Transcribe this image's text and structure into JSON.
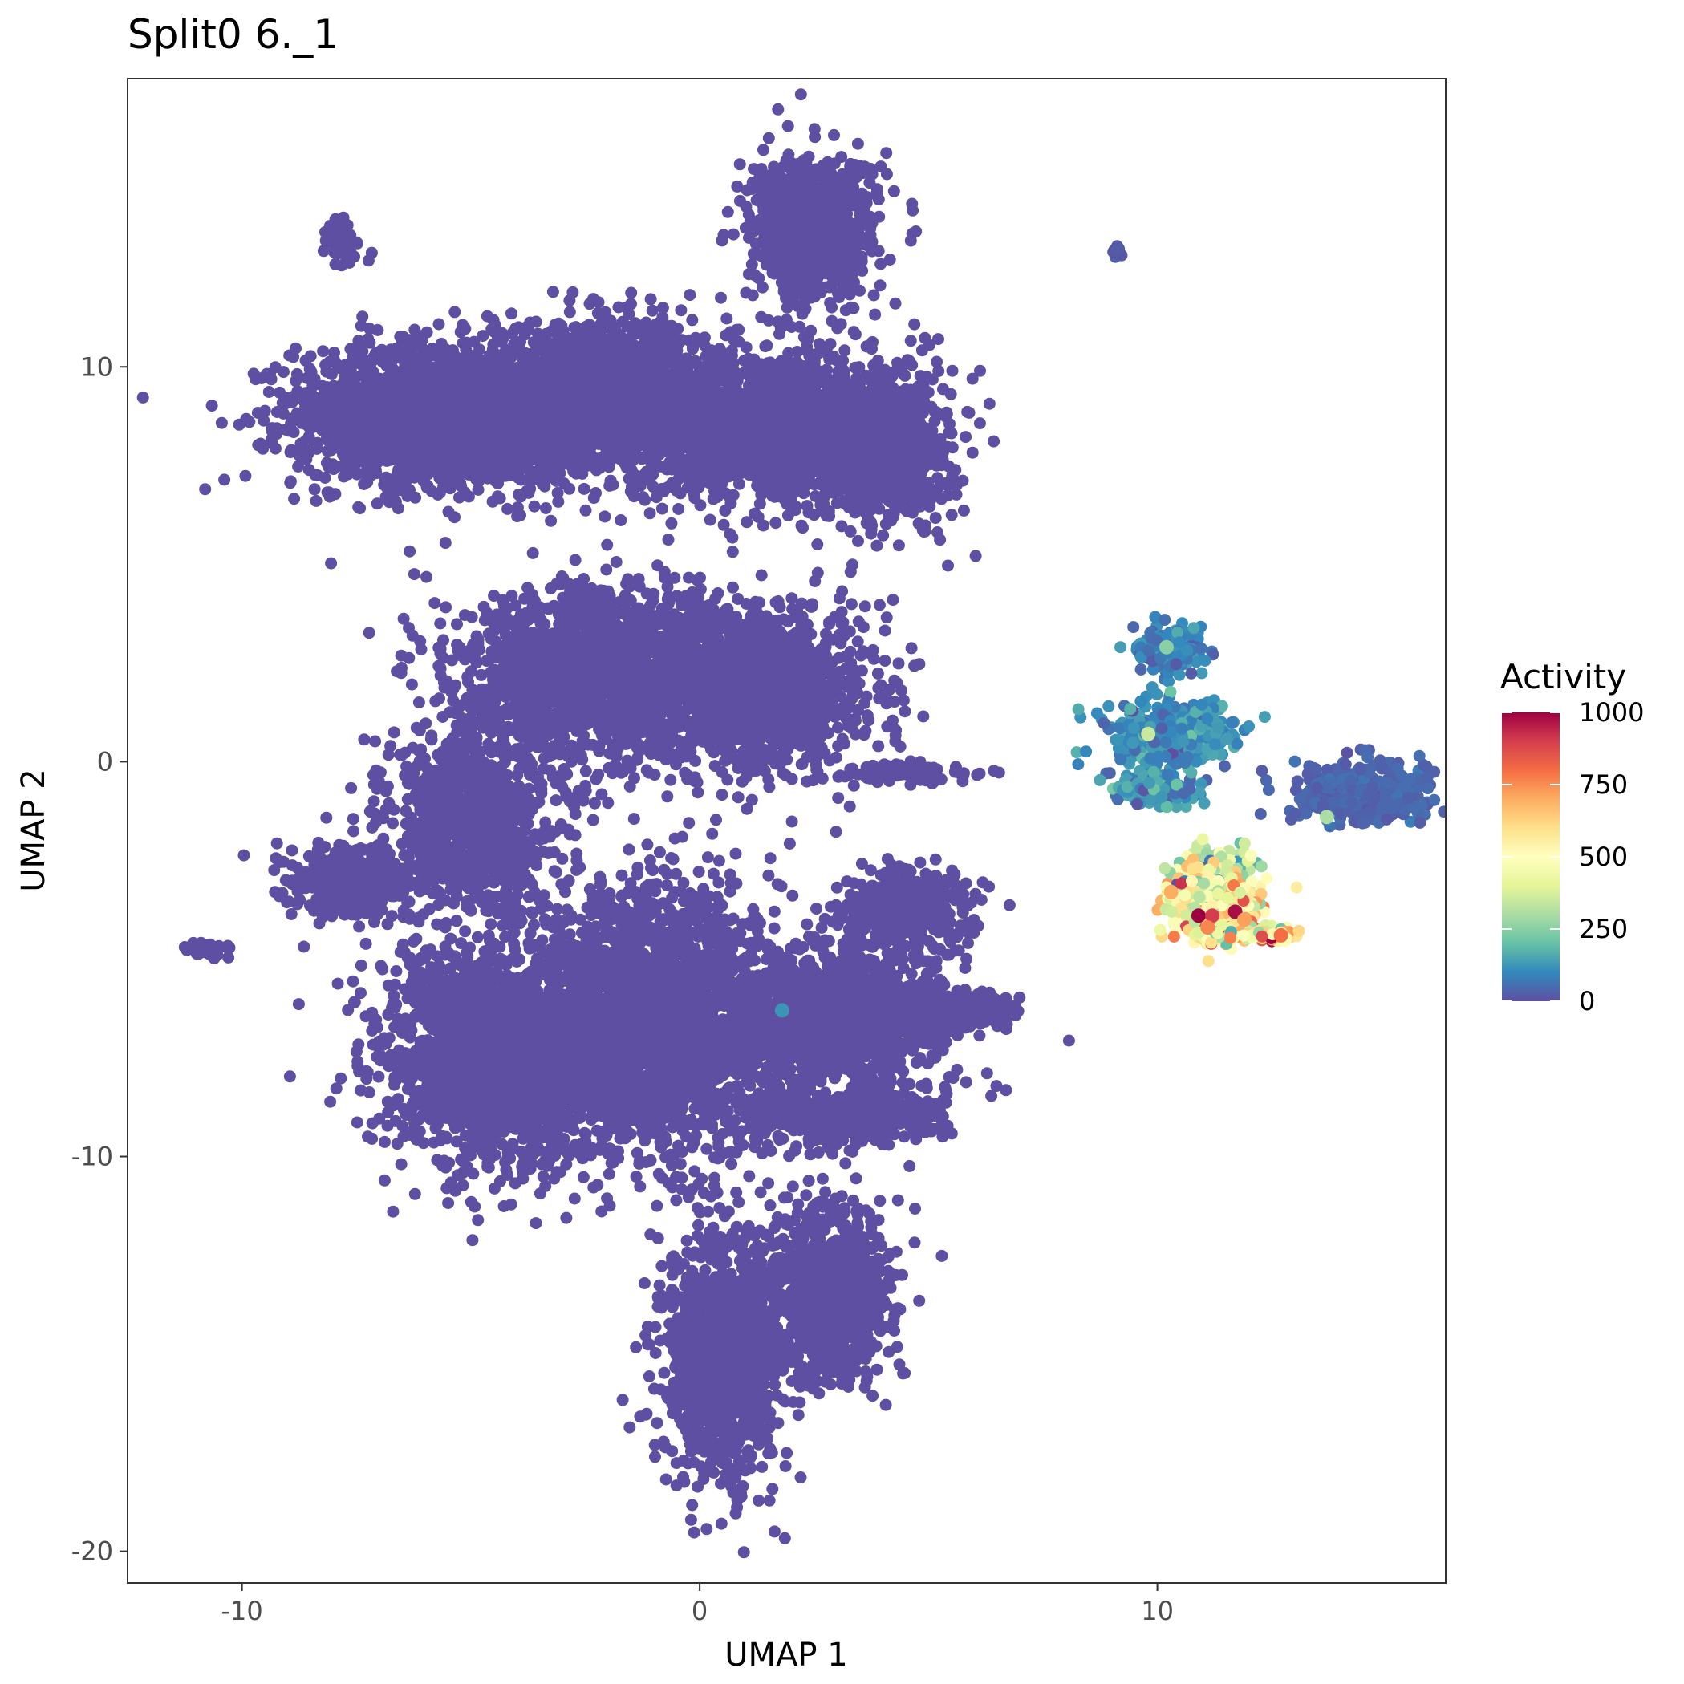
{
  "chart_data": {
    "type": "scatter",
    "title": "Split0 6._1",
    "xlabel": "UMAP 1",
    "ylabel": "UMAP 2",
    "xlim": [
      -12.5,
      16.3
    ],
    "ylim": [
      -20.8,
      17.3
    ],
    "x_ticks": [
      {
        "value": -10,
        "label": "-10"
      },
      {
        "value": 0,
        "label": "0"
      },
      {
        "value": 10,
        "label": "10"
      }
    ],
    "y_ticks": [
      {
        "value": 10,
        "label": "10"
      },
      {
        "value": 0,
        "label": "0"
      },
      {
        "value": -10,
        "label": "-10"
      },
      {
        "value": -20,
        "label": "-20"
      }
    ],
    "grid": false,
    "colorbar": {
      "title": "Activity",
      "min": 0,
      "max": 1000,
      "ticks": [
        {
          "value": 1000,
          "label": "1000"
        },
        {
          "value": 750,
          "label": "750"
        },
        {
          "value": 500,
          "label": "500"
        },
        {
          "value": 250,
          "label": "250"
        },
        {
          "value": 0,
          "label": "0"
        }
      ],
      "palette": [
        "#5E4FA2",
        "#3288BD",
        "#66C2A5",
        "#ABDDA4",
        "#E6F598",
        "#FFFFBF",
        "#FEE08B",
        "#FDAE61",
        "#F46D43",
        "#D53E4F",
        "#9E0142"
      ]
    },
    "clusters": [
      {
        "cx": -5.5,
        "cy": 8.8,
        "sx": 2.2,
        "sy": 1.2,
        "n": 2200,
        "activity": 0
      },
      {
        "cx": -2.0,
        "cy": 9.2,
        "sx": 1.8,
        "sy": 1.2,
        "n": 1800,
        "activity": 0
      },
      {
        "cx": 1.5,
        "cy": 8.5,
        "sx": 1.5,
        "sy": 1.2,
        "n": 1500,
        "activity": 0
      },
      {
        "cx": 2.5,
        "cy": 13.5,
        "sx": 0.9,
        "sy": 1.2,
        "n": 900,
        "activity": 0
      },
      {
        "cx": 4.0,
        "cy": 8.0,
        "sx": 1.0,
        "sy": 1.3,
        "n": 900,
        "activity": 0
      },
      {
        "cx": -2.0,
        "cy": 2.2,
        "sx": 2.2,
        "sy": 1.4,
        "n": 2000,
        "activity": 0
      },
      {
        "cx": 1.5,
        "cy": 1.8,
        "sx": 1.5,
        "sy": 1.3,
        "n": 1200,
        "activity": 0
      },
      {
        "cx": -5.0,
        "cy": -1.5,
        "sx": 1.2,
        "sy": 1.5,
        "n": 900,
        "activity": 0
      },
      {
        "cx": -7.5,
        "cy": -3.0,
        "sx": 0.9,
        "sy": 0.6,
        "n": 400,
        "activity": 0
      },
      {
        "cx": -4.5,
        "cy": -7.5,
        "sx": 1.6,
        "sy": 1.8,
        "n": 2000,
        "activity": 0
      },
      {
        "cx": -1.0,
        "cy": -6.5,
        "sx": 1.8,
        "sy": 2.2,
        "n": 2400,
        "activity": 0
      },
      {
        "cx": 3.0,
        "cy": -6.5,
        "sx": 1.6,
        "sy": 1.2,
        "n": 1200,
        "activity": 0
      },
      {
        "cx": 5.5,
        "cy": -6.3,
        "sx": 1.0,
        "sy": 0.3,
        "n": 300,
        "activity": 0
      },
      {
        "cx": 4.5,
        "cy": -3.8,
        "sx": 0.9,
        "sy": 0.7,
        "n": 400,
        "activity": 0
      },
      {
        "cx": 3.0,
        "cy": -9.0,
        "sx": 1.5,
        "sy": 0.5,
        "n": 500,
        "activity": 0
      },
      {
        "cx": 0.5,
        "cy": -15.0,
        "sx": 0.9,
        "sy": 2.2,
        "n": 1100,
        "activity": 0
      },
      {
        "cx": 2.8,
        "cy": -13.5,
        "sx": 0.9,
        "sy": 1.5,
        "n": 800,
        "activity": 0
      },
      {
        "cx": 4.5,
        "cy": -0.3,
        "sx": 1.0,
        "sy": 0.15,
        "n": 120,
        "activity": 0
      },
      {
        "cx": -7.8,
        "cy": 13.2,
        "sx": 0.3,
        "sy": 0.4,
        "n": 60,
        "activity": 0
      },
      {
        "cx": -10.8,
        "cy": -4.7,
        "sx": 0.3,
        "sy": 0.12,
        "n": 40,
        "activity": 0
      },
      {
        "cx": 9.1,
        "cy": 12.9,
        "sx": 0.08,
        "sy": 0.1,
        "n": 10,
        "activity": 20
      },
      {
        "cx": 10.3,
        "cy": 2.8,
        "sx": 0.5,
        "sy": 0.35,
        "n": 220,
        "activity": 90
      },
      {
        "cx": 10.3,
        "cy": 0.7,
        "sx": 0.9,
        "sy": 0.5,
        "n": 420,
        "activity": 110
      },
      {
        "cx": 10.0,
        "cy": -0.7,
        "sx": 0.6,
        "sy": 0.25,
        "n": 180,
        "activity": 120
      },
      {
        "cx": 14.5,
        "cy": -0.8,
        "sx": 1.0,
        "sy": 0.5,
        "n": 420,
        "activity": 40
      },
      {
        "cx": 11.3,
        "cy": -2.7,
        "sx": 0.45,
        "sy": 0.3,
        "n": 160,
        "activity": 300
      },
      {
        "cx": 11.2,
        "cy": -3.5,
        "sx": 0.7,
        "sy": 0.5,
        "n": 420,
        "activity": 480
      },
      {
        "cx": 11.6,
        "cy": -4.3,
        "sx": 0.7,
        "sy": 0.2,
        "n": 160,
        "activity": 580
      },
      {
        "cx": 12.4,
        "cy": -4.4,
        "sx": 0.3,
        "sy": 0.1,
        "n": 40,
        "activity": 520
      }
    ],
    "highlights": [
      {
        "x": 10.9,
        "y": -3.9,
        "activity": 1000
      },
      {
        "x": 11.7,
        "y": -3.8,
        "activity": 980
      },
      {
        "x": 11.2,
        "y": -3.9,
        "activity": 900
      },
      {
        "x": 12.7,
        "y": -4.4,
        "activity": 800
      },
      {
        "x": 10.3,
        "y": -3.3,
        "activity": 700
      },
      {
        "x": 11.1,
        "y": -4.2,
        "activity": 760
      },
      {
        "x": 11.9,
        "y": -4.0,
        "activity": 720
      },
      {
        "x": 13.7,
        "y": -1.4,
        "activity": 300
      },
      {
        "x": 9.8,
        "y": 0.7,
        "activity": 350
      },
      {
        "x": 10.2,
        "y": 2.9,
        "activity": 250
      },
      {
        "x": 1.8,
        "y": -6.3,
        "activity": 120
      }
    ]
  }
}
